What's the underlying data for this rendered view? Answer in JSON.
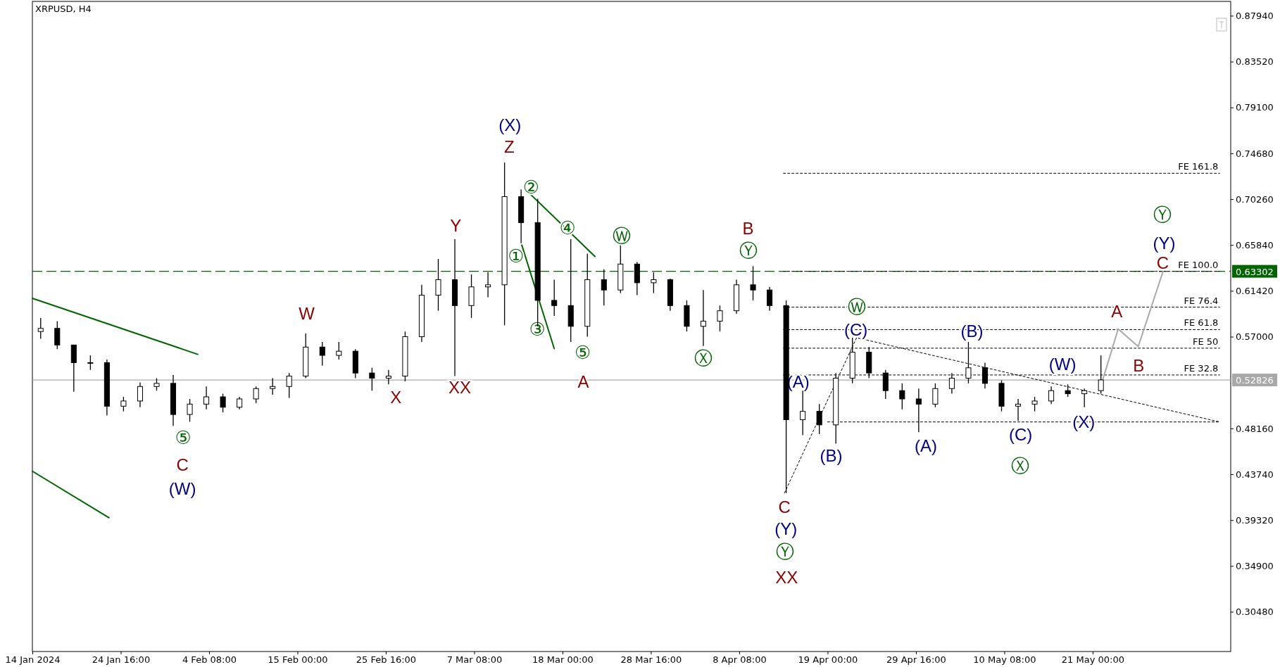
{
  "chart_data": {
    "type": "candlestick",
    "title": "XRPUSD, H4",
    "color": "#000000",
    "x": [
      "2024-01-15",
      "2024-01-17",
      "2024-01-19",
      "2024-01-21",
      "2024-01-23",
      "2024-01-25",
      "2024-01-27",
      "2024-01-29",
      "2024-01-31",
      "2024-02-02",
      "2024-02-04",
      "2024-02-06",
      "2024-02-08",
      "2024-02-10",
      "2024-02-12",
      "2024-02-14",
      "2024-02-16",
      "2024-02-18",
      "2024-02-20",
      "2024-02-22",
      "2024-02-24",
      "2024-02-26",
      "2024-02-28",
      "2024-03-01",
      "2024-03-03",
      "2024-03-05",
      "2024-03-07",
      "2024-03-09",
      "2024-03-11",
      "2024-03-13",
      "2024-03-15",
      "2024-03-17",
      "2024-03-19",
      "2024-03-21",
      "2024-03-23",
      "2024-03-25",
      "2024-03-27",
      "2024-03-29",
      "2024-03-31",
      "2024-04-02",
      "2024-04-04",
      "2024-04-06",
      "2024-04-08",
      "2024-04-10",
      "2024-04-12",
      "2024-04-14",
      "2024-04-16",
      "2024-04-18",
      "2024-04-20",
      "2024-04-22",
      "2024-04-24",
      "2024-04-26",
      "2024-04-28",
      "2024-04-30",
      "2024-05-02",
      "2024-05-04",
      "2024-05-06",
      "2024-05-08",
      "2024-05-10",
      "2024-05-12",
      "2024-05-14",
      "2024-05-16",
      "2024-05-18",
      "2024-05-20",
      "2024-05-22"
    ],
    "ohlc": [
      [
        0.575,
        0.588,
        0.568,
        0.578
      ],
      [
        0.578,
        0.585,
        0.558,
        0.562
      ],
      [
        0.562,
        0.562,
        0.517,
        0.545
      ],
      [
        0.545,
        0.552,
        0.538,
        0.545
      ],
      [
        0.545,
        0.548,
        0.494,
        0.503
      ],
      [
        0.503,
        0.512,
        0.498,
        0.508
      ],
      [
        0.508,
        0.526,
        0.502,
        0.522
      ],
      [
        0.522,
        0.53,
        0.518,
        0.525
      ],
      [
        0.525,
        0.533,
        0.484,
        0.495
      ],
      [
        0.495,
        0.51,
        0.488,
        0.505
      ],
      [
        0.505,
        0.522,
        0.5,
        0.512
      ],
      [
        0.512,
        0.515,
        0.497,
        0.502
      ],
      [
        0.502,
        0.512,
        0.5,
        0.51
      ],
      [
        0.51,
        0.522,
        0.506,
        0.52
      ],
      [
        0.52,
        0.53,
        0.514,
        0.522
      ],
      [
        0.522,
        0.535,
        0.511,
        0.532
      ],
      [
        0.532,
        0.573,
        0.53,
        0.56
      ],
      [
        0.56,
        0.565,
        0.542,
        0.552
      ],
      [
        0.552,
        0.565,
        0.548,
        0.556
      ],
      [
        0.556,
        0.558,
        0.53,
        0.535
      ],
      [
        0.535,
        0.54,
        0.518,
        0.53
      ],
      [
        0.53,
        0.538,
        0.524,
        0.532
      ],
      [
        0.532,
        0.575,
        0.527,
        0.57
      ],
      [
        0.57,
        0.62,
        0.565,
        0.61
      ],
      [
        0.61,
        0.645,
        0.595,
        0.625
      ],
      [
        0.625,
        0.664,
        0.532,
        0.6
      ],
      [
        0.6,
        0.63,
        0.588,
        0.618
      ],
      [
        0.618,
        0.632,
        0.608,
        0.62
      ],
      [
        0.62,
        0.738,
        0.581,
        0.705
      ],
      [
        0.705,
        0.712,
        0.66,
        0.68
      ],
      [
        0.68,
        0.703,
        0.58,
        0.605
      ],
      [
        0.605,
        0.625,
        0.59,
        0.6
      ],
      [
        0.6,
        0.664,
        0.565,
        0.58
      ],
      [
        0.58,
        0.65,
        0.57,
        0.625
      ],
      [
        0.625,
        0.635,
        0.6,
        0.615
      ],
      [
        0.615,
        0.658,
        0.612,
        0.64
      ],
      [
        0.64,
        0.642,
        0.61,
        0.622
      ],
      [
        0.622,
        0.632,
        0.612,
        0.625
      ],
      [
        0.625,
        0.626,
        0.595,
        0.6
      ],
      [
        0.6,
        0.605,
        0.575,
        0.58
      ],
      [
        0.58,
        0.615,
        0.561,
        0.585
      ],
      [
        0.585,
        0.6,
        0.575,
        0.595
      ],
      [
        0.595,
        0.625,
        0.592,
        0.62
      ],
      [
        0.62,
        0.638,
        0.605,
        0.615
      ],
      [
        0.615,
        0.618,
        0.595,
        0.6
      ],
      [
        0.6,
        0.605,
        0.4193,
        0.49
      ],
      [
        0.49,
        0.518,
        0.475,
        0.498
      ],
      [
        0.498,
        0.505,
        0.476,
        0.485
      ],
      [
        0.485,
        0.535,
        0.467,
        0.53
      ],
      [
        0.53,
        0.569,
        0.525,
        0.555
      ],
      [
        0.555,
        0.56,
        0.53,
        0.535
      ],
      [
        0.535,
        0.538,
        0.51,
        0.518
      ],
      [
        0.518,
        0.525,
        0.5,
        0.51
      ],
      [
        0.51,
        0.52,
        0.478,
        0.505
      ],
      [
        0.505,
        0.525,
        0.502,
        0.52
      ],
      [
        0.52,
        0.535,
        0.515,
        0.53
      ],
      [
        0.53,
        0.565,
        0.525,
        0.54
      ],
      [
        0.54,
        0.545,
        0.52,
        0.525
      ],
      [
        0.525,
        0.528,
        0.498,
        0.503
      ],
      [
        0.503,
        0.51,
        0.489,
        0.505
      ],
      [
        0.505,
        0.512,
        0.498,
        0.508
      ],
      [
        0.508,
        0.522,
        0.505,
        0.518
      ],
      [
        0.518,
        0.524,
        0.512,
        0.515
      ],
      [
        0.515,
        0.52,
        0.502,
        0.518
      ],
      [
        0.518,
        0.552,
        0.515,
        0.5283
      ]
    ],
    "series": [
      {
        "type": "line",
        "color": "#000000",
        "line_style": "dotted",
        "x": [
          "2024-04-13T16:00",
          "2024-06-05T08:00"
        ],
        "values": [
          0.7275,
          0.7275
        ]
      },
      {
        "type": "line",
        "color": "#000000",
        "line_style": "dotted",
        "x": [
          "2024-04-13T16:00",
          "2024-06-05T08:00"
        ],
        "values": [
          0.633,
          0.633
        ]
      },
      {
        "type": "line",
        "color": "#000000",
        "line_style": "dotted",
        "x": [
          "2024-04-13T16:00",
          "2024-06-05T08:00"
        ],
        "values": [
          0.5985,
          0.5985
        ]
      },
      {
        "type": "line",
        "color": "#000000",
        "line_style": "dotted",
        "x": [
          "2024-04-13T16:00",
          "2024-06-05T08:00"
        ],
        "values": [
          0.5768,
          0.5768
        ]
      },
      {
        "type": "line",
        "color": "#000000",
        "line_style": "dotted",
        "x": [
          "2024-04-13T16:00",
          "2024-06-05T08:00"
        ],
        "values": [
          0.5589,
          0.5589
        ]
      },
      {
        "type": "line",
        "color": "#000000",
        "line_style": "dotted",
        "x": [
          "2024-04-13T16:00",
          "2024-06-05T08:00"
        ],
        "values": [
          0.5331,
          0.5331
        ]
      },
      {
        "type": "line",
        "color": "#000000",
        "line_style": "dotted",
        "x": [
          "2024-04-19T00:00",
          "2024-06-05T08:00"
        ],
        "values": [
          0.4878,
          0.4878
        ]
      },
      {
        "type": "line",
        "color": "#000000",
        "line_style": "dotted",
        "x": [
          "2024-04-13T19:00",
          "2024-04-22T12:00",
          "2024-06-05T08:00"
        ],
        "values": [
          0.4193,
          0.569,
          0.4878
        ]
      },
      {
        "type": "line",
        "color": "#006400",
        "line_style": "solid",
        "x": [
          "2024-01-14T00:00",
          "2024-02-02T23:00"
        ],
        "values": [
          0.607,
          0.553
        ]
      },
      {
        "type": "line",
        "color": "#006400",
        "line_style": "solid",
        "x": [
          "2024-01-14T00:00",
          "2024-01-23T06:00"
        ],
        "values": [
          0.4403,
          0.3955
        ]
      },
      {
        "type": "line",
        "color": "#006400",
        "line_style": "solid",
        "x": [
          "2024-03-13T19:00",
          "2024-03-21T22:00"
        ],
        "values": [
          0.7098,
          0.6474
        ]
      },
      {
        "type": "line",
        "color": "#006400",
        "line_style": "solid",
        "x": [
          "2024-03-13T02:00",
          "2024-03-17T00:00"
        ],
        "values": [
          0.6583,
          0.5585
        ]
      },
      {
        "type": "line",
        "color": "#a9a9a9",
        "line_style": "solid",
        "x": [
          "2024-05-22T05:00",
          "2024-05-24T02:00",
          "2024-05-26T12:00",
          "2024-05-29T12:00"
        ],
        "values": [
          0.5283,
          0.5775,
          0.5605,
          0.633
        ]
      }
    ],
    "ref_lines": [
      {
        "axis": "y",
        "value": 0.63302,
        "label": "0.63302",
        "color": "#006400",
        "line_style": "dashed"
      },
      {
        "axis": "y",
        "value": 0.52826,
        "label": "0.52826",
        "color": "#a9a9a9",
        "line_style": "solid"
      }
    ],
    "annotations": [
      "⑤",
      "C",
      "(W)",
      "W",
      "X",
      "Y",
      "XX",
      "Z",
      "(X)",
      "①",
      "②",
      "③",
      "④",
      "⑤",
      "A",
      "Ⓦ",
      "Ⓧ",
      "B",
      "Ⓨ",
      "(A)",
      "C",
      "(Y)",
      "Ⓨ",
      "XX",
      "(B)",
      "Ⓦ",
      "(C)",
      "(A)",
      "(B)",
      "(C)",
      "Ⓧ",
      "(W)",
      "(X)",
      "A",
      "B",
      "C",
      "(Y)",
      "Ⓨ",
      {
        "text": "FE 161.8",
        "x": "2024-06-05T08:00",
        "y": 0.7275
      },
      {
        "text": "FE 100.0",
        "x": "2024-06-05T08:00",
        "y": 0.633
      },
      {
        "text": "FE 76.4",
        "x": "2024-06-05T08:00",
        "y": 0.5985
      },
      {
        "text": "FE 61.8",
        "x": "2024-06-05T08:00",
        "y": 0.5768
      },
      {
        "text": "FE 50",
        "x": "2024-06-05T08:00",
        "y": 0.5589
      },
      {
        "text": "FE 32.8",
        "x": "2024-06-05T08:00",
        "y": 0.5331
      }
    ],
    "xlim": [
      "2024-01-14T00:00",
      "2024-06-06T16:00"
    ],
    "xticks": [
      {
        "value": "2024-01-14T00:00",
        "label": "14 Jan 2024"
      },
      {
        "value": "2024-01-24T16:00",
        "label": "24 Jan 16:00"
      },
      {
        "value": "2024-02-04T08:00",
        "label": "4 Feb 08:00"
      },
      {
        "value": "2024-02-15T00:00",
        "label": "15 Feb 00:00"
      },
      {
        "value": "2024-02-25T16:00",
        "label": "25 Feb 16:00"
      },
      {
        "value": "2024-03-07T08:00",
        "label": "7 Mar 08:00"
      },
      {
        "value": "2024-03-18T00:00",
        "label": "18 Mar 00:00"
      },
      {
        "value": "2024-03-28T16:00",
        "label": "28 Mar 16:00"
      },
      {
        "value": "2024-04-08T08:00",
        "label": "8 Apr 08:00"
      },
      {
        "value": "2024-04-19T00:00",
        "label": "19 Apr 00:00"
      },
      {
        "value": "2024-04-29T16:00",
        "label": "29 Apr 16:00"
      },
      {
        "value": "2024-05-10T08:00",
        "label": "10 May 08:00"
      },
      {
        "value": "2024-05-21T00:00",
        "label": "21 May 00:00"
      }
    ],
    "ylim": [
      0.2665,
      0.8932
    ],
    "yticks": [
      {
        "value": 0.8794,
        "label": "0.87940"
      },
      {
        "value": 0.8352,
        "label": "0.83520"
      },
      {
        "value": 0.791,
        "label": "0.79100"
      },
      {
        "value": 0.7468,
        "label": "0.74680"
      },
      {
        "value": 0.7026,
        "label": "0.70260"
      },
      {
        "value": 0.6584,
        "label": "0.65840"
      },
      {
        "value": 0.6142,
        "label": "0.61420"
      },
      {
        "value": 0.57,
        "label": "0.57000"
      },
      {
        "value": 0.4816,
        "label": "0.48160"
      },
      {
        "value": 0.4374,
        "label": "0.43740"
      },
      {
        "value": 0.3932,
        "label": "0.39320"
      },
      {
        "value": 0.349,
        "label": "0.34900"
      },
      {
        "value": 0.3048,
        "label": "0.30480"
      }
    ],
    "grid": false
  }
}
